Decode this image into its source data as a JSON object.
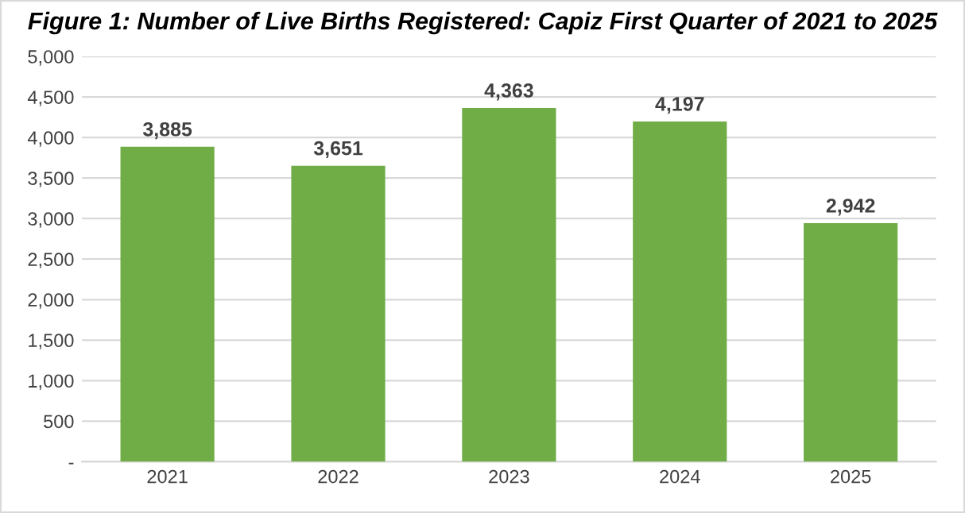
{
  "chart_data": {
    "type": "bar",
    "title": "Figure 1: Number of Live Births Registered: Capiz First Quarter of 2021 to 2025",
    "categories": [
      "2021",
      "2022",
      "2023",
      "2024",
      "2025"
    ],
    "values": [
      3885,
      3651,
      4363,
      4197,
      2942
    ],
    "value_labels": [
      "3,885",
      "3,651",
      "4,363",
      "4,197",
      "2,942"
    ],
    "color": "#70ad47",
    "ylim": [
      0,
      5000
    ],
    "yticks": [
      {
        "value": 0,
        "label": "-"
      },
      {
        "value": 500,
        "label": "500"
      },
      {
        "value": 1000,
        "label": "1,000"
      },
      {
        "value": 1500,
        "label": "1,500"
      },
      {
        "value": 2000,
        "label": "2,000"
      },
      {
        "value": 2500,
        "label": "2,500"
      },
      {
        "value": 3000,
        "label": "3,000"
      },
      {
        "value": 3500,
        "label": "3,500"
      },
      {
        "value": 4000,
        "label": "4,000"
      },
      {
        "value": 4500,
        "label": "4,500"
      },
      {
        "value": 5000,
        "label": "5,000"
      }
    ],
    "grid": "y"
  }
}
